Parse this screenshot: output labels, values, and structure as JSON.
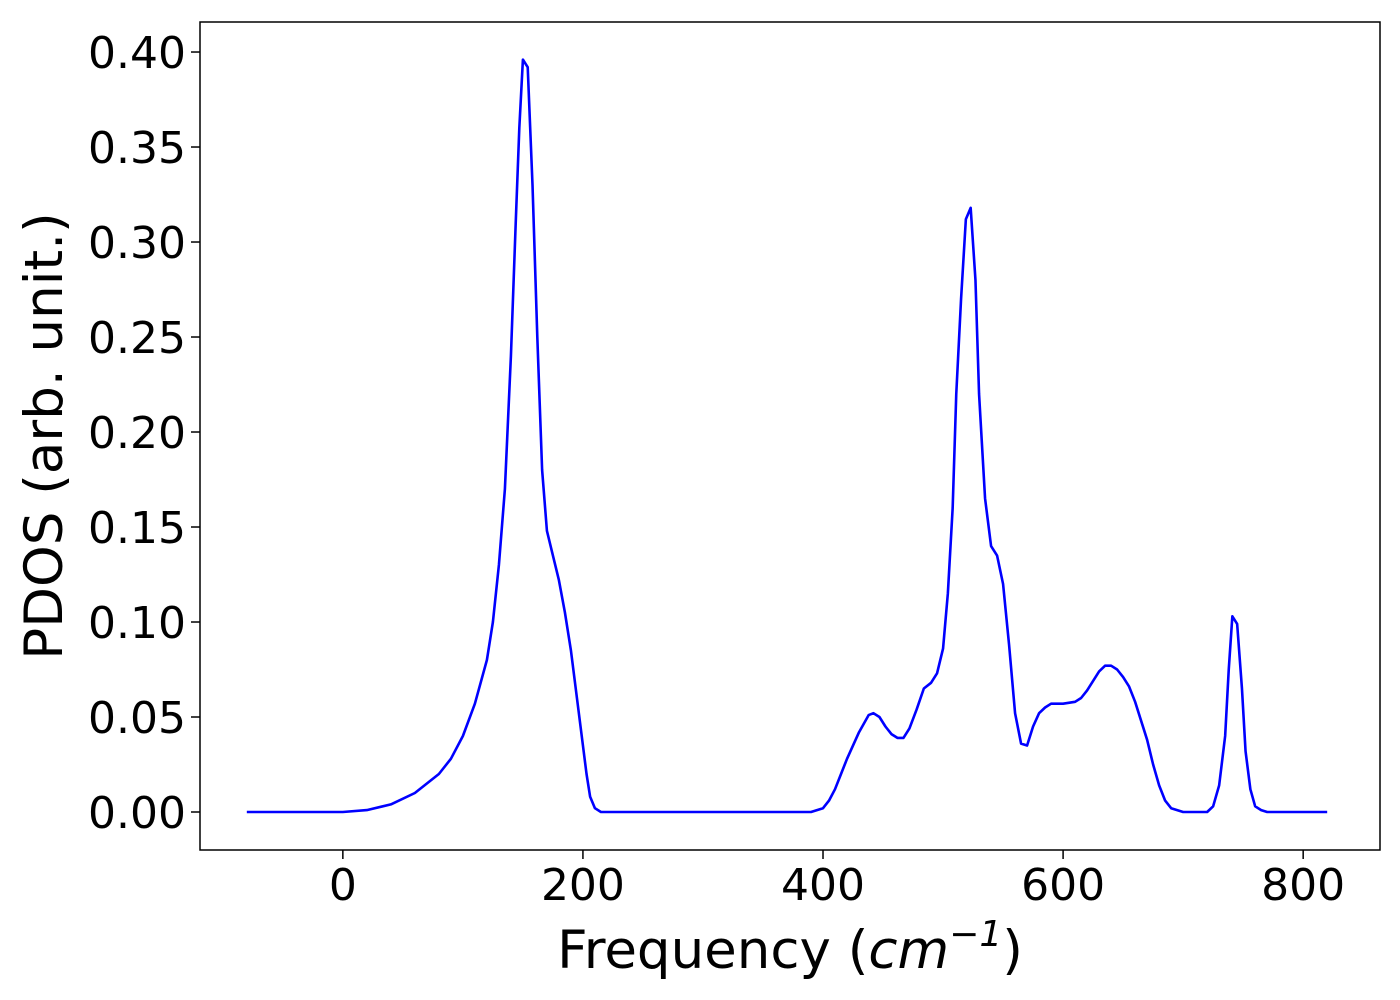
{
  "chart_data": {
    "type": "line",
    "ylabel": "PDOS (arb. unit.)",
    "xlabel": {
      "prefix": "Frequency (",
      "unit": "cm",
      "exponent": "−1",
      "suffix": ")"
    },
    "xlim": [
      -119,
      864
    ],
    "ylim": [
      -0.02,
      0.4158
    ],
    "xticks": [
      0,
      200,
      400,
      600,
      800
    ],
    "yticks": [
      {
        "value": 0,
        "label": "0.00"
      },
      {
        "value": 0.05,
        "label": "0.05"
      },
      {
        "value": 0.1,
        "label": "0.10"
      },
      {
        "value": 0.15,
        "label": "0.15"
      },
      {
        "value": 0.2,
        "label": "0.20"
      },
      {
        "value": 0.25,
        "label": "0.25"
      },
      {
        "value": 0.3,
        "label": "0.30"
      },
      {
        "value": 0.35,
        "label": "0.35"
      },
      {
        "value": 0.4,
        "label": "0.40"
      }
    ],
    "grid": false,
    "series": [
      {
        "color": "#0000ff",
        "x": [
          -80,
          -40,
          0,
          20,
          40,
          60,
          80,
          90,
          100,
          110,
          120,
          125,
          130,
          135,
          140,
          144,
          147,
          150,
          154,
          158,
          162,
          166,
          170,
          175,
          180,
          185,
          190,
          195,
          200,
          203,
          206,
          210,
          215,
          300,
          390,
          400,
          405,
          410,
          415,
          420,
          430,
          438,
          442,
          447,
          452,
          457,
          462,
          467,
          472,
          478,
          484,
          490,
          495,
          500,
          504,
          508,
          511,
          515,
          519,
          523,
          527,
          530,
          535,
          540,
          545,
          550,
          555,
          560,
          565,
          570,
          575,
          580,
          585,
          590,
          600,
          610,
          615,
          620,
          630,
          635,
          640,
          645,
          650,
          655,
          660,
          665,
          670,
          675,
          680,
          685,
          690,
          700,
          720,
          725,
          730,
          735,
          738,
          741,
          745,
          749,
          752,
          756,
          760,
          765,
          770,
          820
        ],
        "values": [
          0,
          0,
          0,
          0.001,
          0.004,
          0.01,
          0.02,
          0.028,
          0.04,
          0.057,
          0.08,
          0.1,
          0.13,
          0.17,
          0.24,
          0.31,
          0.36,
          0.396,
          0.392,
          0.33,
          0.25,
          0.18,
          0.148,
          0.135,
          0.122,
          0.105,
          0.085,
          0.06,
          0.035,
          0.02,
          0.008,
          0.002,
          0,
          0,
          0,
          0.002,
          0.006,
          0.012,
          0.02,
          0.028,
          0.042,
          0.051,
          0.052,
          0.05,
          0.045,
          0.041,
          0.039,
          0.039,
          0.044,
          0.054,
          0.065,
          0.068,
          0.073,
          0.086,
          0.115,
          0.16,
          0.22,
          0.27,
          0.312,
          0.318,
          0.28,
          0.22,
          0.165,
          0.14,
          0.135,
          0.12,
          0.088,
          0.052,
          0.036,
          0.035,
          0.045,
          0.052,
          0.055,
          0.057,
          0.057,
          0.058,
          0.06,
          0.064,
          0.074,
          0.077,
          0.077,
          0.075,
          0.071,
          0.066,
          0.058,
          0.048,
          0.038,
          0.025,
          0.014,
          0.006,
          0.002,
          0,
          0,
          0.003,
          0.014,
          0.04,
          0.075,
          0.103,
          0.099,
          0.065,
          0.032,
          0.012,
          0.003,
          0.001,
          0,
          0
        ]
      }
    ]
  }
}
